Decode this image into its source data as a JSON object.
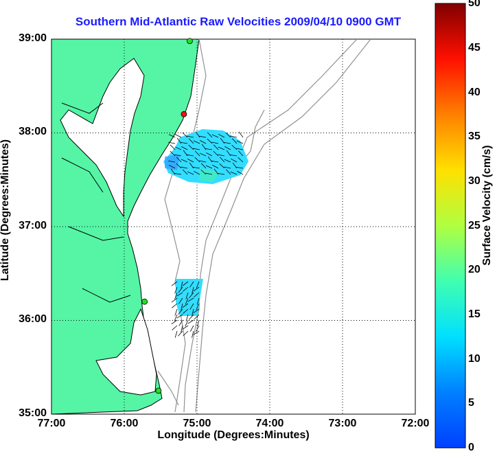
{
  "title": "Southern Mid-Atlantic Raw Velocities 2009/04/10 0900 GMT",
  "x_axis": {
    "label": "Longitude (Degrees:Minutes)",
    "ticks": [
      "77:00",
      "76:00",
      "75:00",
      "74:00",
      "73:00",
      "72:00"
    ]
  },
  "y_axis": {
    "label": "Latitude (Degrees:Minutes)",
    "ticks": [
      "39:00",
      "38:00",
      "37:00",
      "36:00",
      "35:00"
    ]
  },
  "colorbar": {
    "label": "Surface Velocity (cm/s)",
    "ticks": [
      "50",
      "45",
      "40",
      "35",
      "30",
      "25",
      "20",
      "15",
      "10",
      "5",
      "0"
    ],
    "range": [
      0,
      50
    ],
    "colormap": "jet"
  },
  "colors": {
    "land": "#55f5a5",
    "ocean": "#ffffff",
    "coastline": "#000000",
    "bathymetry": "#909090",
    "grid": "#000000",
    "title": "#1a1aff",
    "station_green": "#22e022",
    "station_red": "#ee1111"
  },
  "lon_range": [
    -77,
    -72
  ],
  "lat_range": [
    35,
    39
  ],
  "stations": [
    {
      "lon": -75.1,
      "lat": 38.98,
      "status": "green"
    },
    {
      "lon": -75.18,
      "lat": 38.2,
      "status": "red"
    },
    {
      "lon": -75.72,
      "lat": 36.2,
      "status": "green"
    },
    {
      "lon": -75.53,
      "lat": 35.25,
      "status": "green"
    }
  ]
}
